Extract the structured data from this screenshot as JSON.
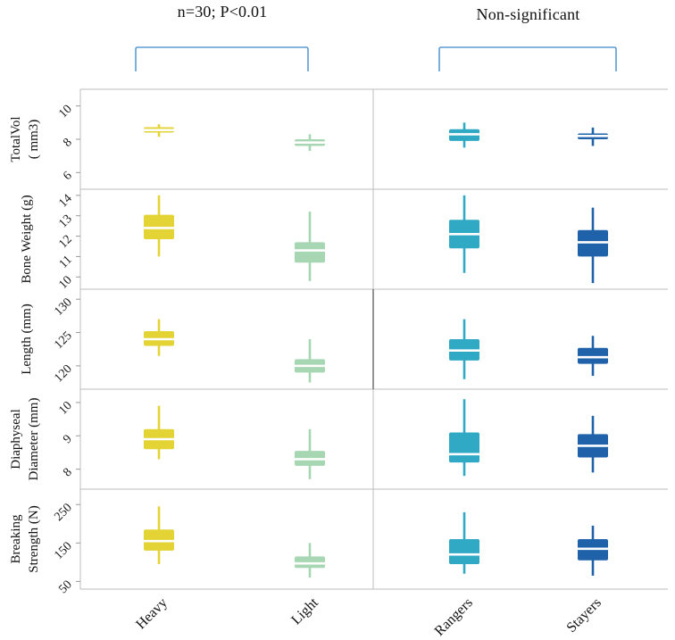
{
  "annotations": {
    "left_group": {
      "label": "n=30; P<0.01"
    },
    "right_group": {
      "label": "Non-significant"
    },
    "bracket_color": "#5b9bd5"
  },
  "chart_data": {
    "type": "boxplot",
    "layout_hint": "5 stacked panels sharing 4 categories; left pair (Heavy, Light) vs right pair (Rangers, Stayers) separated by divider; white median lines; rotated tick and category labels",
    "median_color": "#ffffff",
    "categories": [
      {
        "name": "Heavy",
        "color": "#e3d335",
        "group": "left"
      },
      {
        "name": "Light",
        "color": "#a7d7b2",
        "group": "left"
      },
      {
        "name": "Rangers",
        "color": "#2fa9c4",
        "group": "right"
      },
      {
        "name": "Stayers",
        "color": "#1f62a9",
        "group": "right"
      }
    ],
    "panels": [
      {
        "label_lines": [
          "TotalVol",
          "( mm3)"
        ],
        "ticks": [
          6,
          8,
          10
        ],
        "ylim": [
          5,
          11
        ],
        "boxes": [
          {
            "category": "Heavy",
            "whisker_low": 8.15,
            "q1": 8.4,
            "median": 8.55,
            "q3": 8.72,
            "whisker_high": 8.9
          },
          {
            "category": "Light",
            "whisker_low": 7.3,
            "q1": 7.6,
            "median": 7.8,
            "q3": 8.0,
            "whisker_high": 8.3
          },
          {
            "category": "Rangers",
            "whisker_low": 7.5,
            "q1": 7.9,
            "median": 8.3,
            "q3": 8.6,
            "whisker_high": 9.0
          },
          {
            "category": "Stayers",
            "whisker_low": 7.6,
            "q1": 8.0,
            "median": 8.2,
            "q3": 8.35,
            "whisker_high": 8.7
          }
        ]
      },
      {
        "label_lines": [
          "Bone Weight (g)"
        ],
        "ticks": [
          10,
          11,
          12,
          13,
          14
        ],
        "ylim": [
          9.4,
          14.3
        ],
        "boxes": [
          {
            "category": "Heavy",
            "whisker_low": 11.0,
            "q1": 11.85,
            "median": 12.4,
            "q3": 13.05,
            "whisker_high": 14.0
          },
          {
            "category": "Light",
            "whisker_low": 9.8,
            "q1": 10.7,
            "median": 11.3,
            "q3": 11.7,
            "whisker_high": 13.2
          },
          {
            "category": "Rangers",
            "whisker_low": 10.2,
            "q1": 11.4,
            "median": 12.1,
            "q3": 12.8,
            "whisker_high": 14.0
          },
          {
            "category": "Stayers",
            "whisker_low": 9.7,
            "q1": 11.0,
            "median": 11.7,
            "q3": 12.3,
            "whisker_high": 13.4
          }
        ]
      },
      {
        "label_lines": [
          "Length (mm)"
        ],
        "ticks": [
          120,
          125,
          130
        ],
        "ylim": [
          116.5,
          131.5
        ],
        "boxes": [
          {
            "category": "Heavy",
            "whisker_low": 121.5,
            "q1": 123.0,
            "median": 124.0,
            "q3": 125.2,
            "whisker_high": 127.0
          },
          {
            "category": "Light",
            "whisker_low": 117.5,
            "q1": 119.0,
            "median": 120.0,
            "q3": 121.0,
            "whisker_high": 124.0
          },
          {
            "category": "Rangers",
            "whisker_low": 118.0,
            "q1": 120.8,
            "median": 122.3,
            "q3": 124.0,
            "whisker_high": 127.0
          },
          {
            "category": "Stayers",
            "whisker_low": 118.5,
            "q1": 120.3,
            "median": 121.3,
            "q3": 122.7,
            "whisker_high": 124.5
          }
        ]
      },
      {
        "label_lines": [
          "Diaphyseal",
          "Diameter (mm)"
        ],
        "ticks": [
          8,
          9,
          10
        ],
        "ylim": [
          7.4,
          10.4
        ],
        "boxes": [
          {
            "category": "Heavy",
            "whisker_low": 8.3,
            "q1": 8.6,
            "median": 8.9,
            "q3": 9.2,
            "whisker_high": 9.9
          },
          {
            "category": "Light",
            "whisker_low": 7.7,
            "q1": 8.1,
            "median": 8.3,
            "q3": 8.55,
            "whisker_high": 9.2
          },
          {
            "category": "Rangers",
            "whisker_low": 7.8,
            "q1": 8.2,
            "median": 8.45,
            "q3": 9.1,
            "whisker_high": 10.1
          },
          {
            "category": "Stayers",
            "whisker_low": 7.9,
            "q1": 8.35,
            "median": 8.7,
            "q3": 9.05,
            "whisker_high": 9.6
          }
        ]
      },
      {
        "label_lines": [
          "Breaking",
          "Strength (N)"
        ],
        "ticks": [
          50,
          150,
          250
        ],
        "ylim": [
          30,
          290
        ],
        "boxes": [
          {
            "category": "Heavy",
            "whisker_low": 95,
            "q1": 130,
            "median": 155,
            "q3": 185,
            "whisker_high": 245
          },
          {
            "category": "Light",
            "whisker_low": 60,
            "q1": 85,
            "median": 97,
            "q3": 115,
            "whisker_high": 150
          },
          {
            "category": "Rangers",
            "whisker_low": 70,
            "q1": 95,
            "median": 120,
            "q3": 160,
            "whisker_high": 230
          },
          {
            "category": "Stayers",
            "whisker_low": 65,
            "q1": 105,
            "median": 135,
            "q3": 160,
            "whisker_high": 195
          }
        ]
      }
    ]
  }
}
